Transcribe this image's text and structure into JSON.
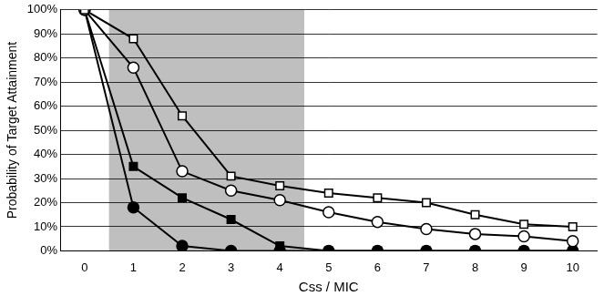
{
  "chart_data": {
    "type": "line",
    "x_label": "Css / MIC",
    "y_label": "Probability of Target Attainment",
    "x": [
      0,
      1,
      2,
      3,
      4,
      5,
      6,
      7,
      8,
      9,
      10
    ],
    "series": [
      {
        "color": "#000000",
        "marker": "open_square",
        "values": [
          100,
          88,
          56,
          31,
          27,
          24,
          22,
          20,
          15,
          11,
          10
        ]
      },
      {
        "color": "#000000",
        "marker": "open_circle",
        "values": [
          100,
          76,
          33,
          25,
          21,
          16,
          12,
          9,
          7,
          6,
          4
        ]
      },
      {
        "color": "#000000",
        "marker": "filled_square",
        "values": [
          100,
          35,
          22,
          13,
          2,
          0,
          0,
          0,
          0,
          0,
          0
        ]
      },
      {
        "color": "#000000",
        "marker": "filled_circle",
        "values": [
          100,
          18,
          2,
          0,
          0,
          0,
          0,
          0,
          0,
          0,
          0
        ]
      }
    ],
    "xlim": [
      -0.5,
      10.5
    ],
    "xticks": [
      0,
      1,
      2,
      3,
      4,
      5,
      6,
      7,
      8,
      9,
      10
    ],
    "ylim": [
      0,
      100
    ],
    "yticks": [
      {
        "value": 0,
        "label": "0%"
      },
      {
        "value": 10,
        "label": "10%"
      },
      {
        "value": 20,
        "label": "20%"
      },
      {
        "value": 30,
        "label": "30%"
      },
      {
        "value": 40,
        "label": "40%"
      },
      {
        "value": 50,
        "label": "50%"
      },
      {
        "value": 60,
        "label": "60%"
      },
      {
        "value": 70,
        "label": "70%"
      },
      {
        "value": 80,
        "label": "80%"
      },
      {
        "value": 90,
        "label": "90%"
      },
      {
        "value": 100,
        "label": "100%"
      }
    ],
    "shaded_x": [
      0.5,
      4.5
    ],
    "grid": true
  }
}
